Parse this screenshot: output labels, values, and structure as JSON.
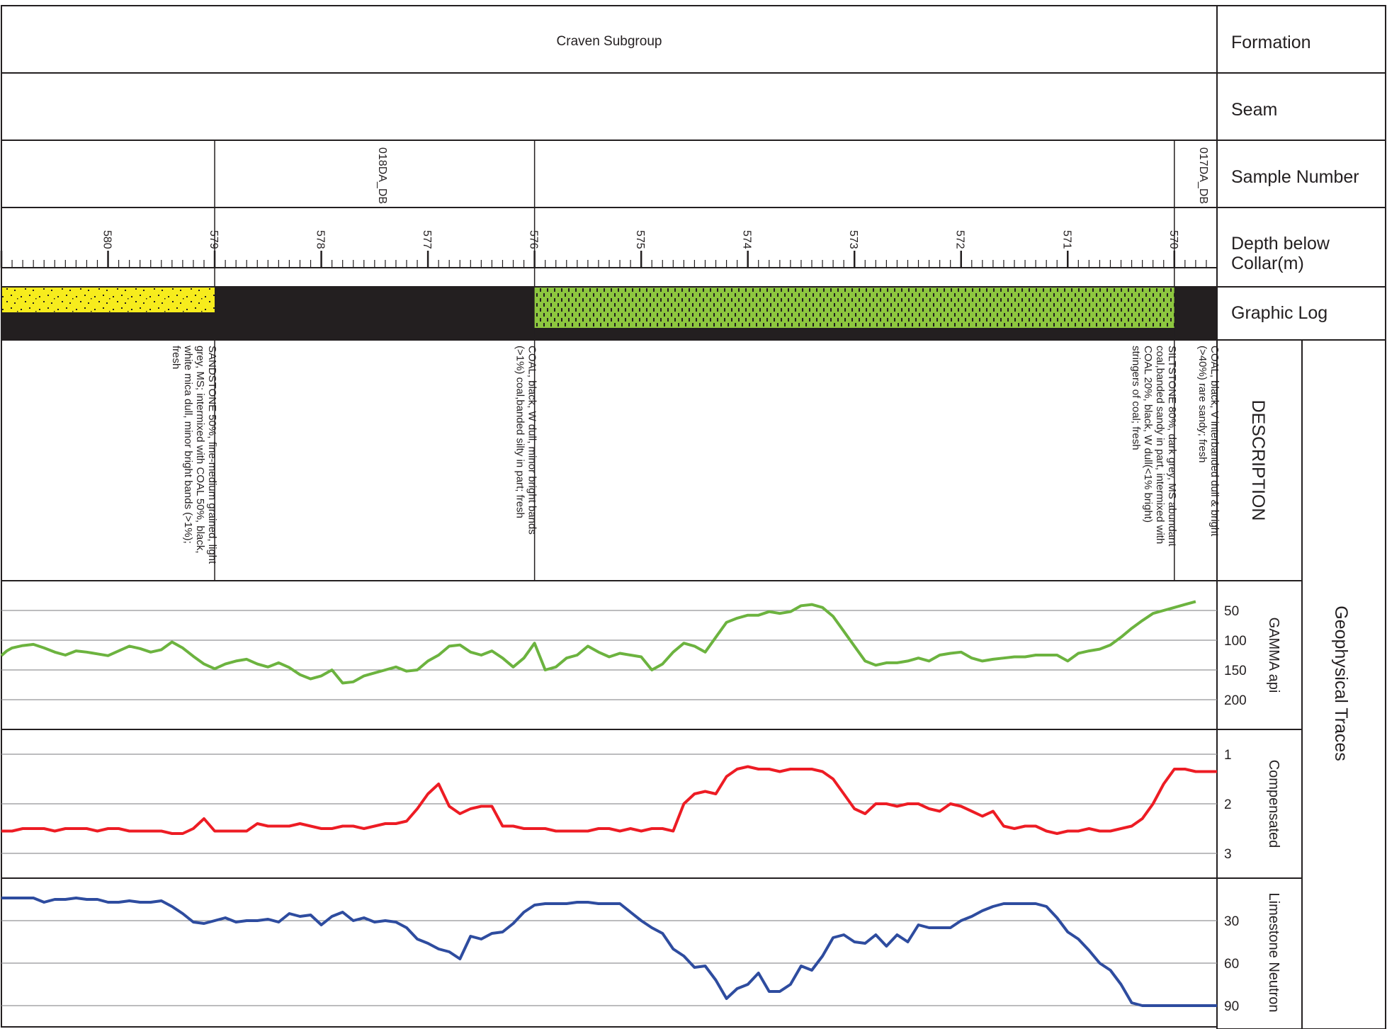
{
  "header": {
    "formation_value": "Craven Subgroup",
    "seam_value": ""
  },
  "row_labels": {
    "formation": "Formation",
    "seam": "Seam",
    "sample_number": "Sample Number",
    "depth_line1": "Depth below",
    "depth_line2": "Collar(m)",
    "graphic_log": "Graphic Log",
    "description": "DESCRIPTION",
    "geophysical": "Geophysical Traces"
  },
  "samples": [
    {
      "id": "018DA_DB",
      "from_depth": 579,
      "to_depth": 576
    },
    {
      "id": "017DA_DB",
      "from_depth": 570,
      "to_depth": 569.6
    }
  ],
  "depth_axis": {
    "left_depth": 581.0,
    "right_depth": 569.6,
    "major_ticks": [
      "580",
      "579",
      "578",
      "577",
      "576",
      "575",
      "574",
      "573",
      "572",
      "571",
      "570"
    ],
    "minor_step": 0.1
  },
  "lithology": [
    {
      "top_depth": 581.0,
      "base_depth": 579.0,
      "type": "sandstone+coal",
      "fill": "#f7ec1d",
      "description": "SANDSTONE 50%, fine-medium grained, light grey, MS; intermixed with COAL 50%, black, white mica dull, minor bright bands (>1%); fresh"
    },
    {
      "top_depth": 579.0,
      "base_depth": 576.0,
      "type": "coal",
      "fill": "#231f20",
      "description": "COAL, black, W dull, minor bright bands (>1%) coal,banded silty in part; fresh"
    },
    {
      "top_depth": 576.0,
      "base_depth": 570.0,
      "type": "siltstone+coal",
      "fill": "#8dc63f",
      "description": "SILTSTONE 80%, dark grey, MS abundant coal,banded sandy in part, intermixed with COAL 20%, black, W dull(<1% bright) stringers of coal; fresh"
    },
    {
      "top_depth": 570.0,
      "base_depth": 569.6,
      "type": "coal",
      "fill": "#231f20",
      "description": "COAL, black, V interbanded dull & bright (>40%) rare sandy; fresh"
    }
  ],
  "chart_data": {
    "type": "line",
    "x_label": "Depth below Collar(m)",
    "x_range": [
      581.0,
      569.6
    ],
    "tracks": [
      {
        "name": "GAMMA api",
        "color": "#6cb33f",
        "y_ticks": [
          "50",
          "100",
          "150",
          "200"
        ],
        "y_range": [
          0,
          250
        ],
        "depth": [
          581.0,
          580.95,
          580.9,
          580.8,
          580.7,
          580.6,
          580.5,
          580.4,
          580.3,
          580.2,
          580.1,
          580.0,
          579.9,
          579.8,
          579.7,
          579.6,
          579.5,
          579.4,
          579.3,
          579.2,
          579.1,
          579.0,
          578.9,
          578.8,
          578.7,
          578.6,
          578.5,
          578.4,
          578.3,
          578.2,
          578.1,
          578.0,
          577.9,
          577.8,
          577.7,
          577.6,
          577.5,
          577.4,
          577.3,
          577.2,
          577.1,
          577.0,
          576.9,
          576.8,
          576.7,
          576.6,
          576.5,
          576.4,
          576.3,
          576.2,
          576.1,
          576.0,
          575.9,
          575.8,
          575.7,
          575.6,
          575.5,
          575.4,
          575.3,
          575.2,
          575.1,
          575.0,
          574.9,
          574.8,
          574.7,
          574.6,
          574.5,
          574.4,
          574.3,
          574.2,
          574.1,
          574.0,
          573.9,
          573.8,
          573.7,
          573.6,
          573.5,
          573.4,
          573.3,
          573.2,
          573.1,
          573.0,
          572.9,
          572.8,
          572.7,
          572.6,
          572.5,
          572.4,
          572.3,
          572.2,
          572.1,
          572.0,
          571.9,
          571.8,
          571.7,
          571.6,
          571.5,
          571.4,
          571.3,
          571.2,
          571.1,
          571.0,
          570.9,
          570.8,
          570.7,
          570.6,
          570.5,
          570.4,
          570.3,
          570.2,
          570.1,
          570.0,
          569.9,
          569.8,
          569.7,
          569.6
        ],
        "values": [
          126,
          118,
          113,
          109,
          107,
          113,
          120,
          125,
          118,
          120,
          123,
          126,
          118,
          110,
          114,
          120,
          116,
          103,
          113,
          127,
          140,
          148,
          140,
          135,
          132,
          140,
          145,
          138,
          146,
          158,
          165,
          160,
          150,
          172,
          170,
          160,
          155,
          150,
          145,
          152,
          150,
          135,
          125,
          110,
          108,
          120,
          125,
          118,
          130,
          145,
          130,
          105,
          150,
          145,
          130,
          125,
          110,
          120,
          128,
          122,
          125,
          128,
          150,
          140,
          120,
          105,
          110,
          120,
          95,
          70,
          63,
          58,
          58,
          52,
          55,
          52,
          42,
          40,
          45,
          60,
          85,
          110,
          135,
          142,
          138,
          138,
          135,
          130,
          135,
          125,
          122,
          120,
          130,
          135,
          132,
          130,
          128,
          128,
          125,
          125,
          125,
          135,
          122,
          118,
          115,
          108,
          95,
          80,
          67,
          55,
          50,
          45,
          40,
          35
        ]
      },
      {
        "name": "Compensated",
        "color": "#ed1c24",
        "y_ticks": [
          "1",
          "2",
          "3"
        ],
        "y_range": [
          0.5,
          3.5
        ],
        "depth": [
          581.0,
          580.9,
          580.8,
          580.7,
          580.6,
          580.5,
          580.4,
          580.3,
          580.2,
          580.1,
          580.0,
          579.9,
          579.8,
          579.7,
          579.6,
          579.5,
          579.4,
          579.3,
          579.2,
          579.1,
          579.0,
          578.9,
          578.8,
          578.7,
          578.6,
          578.5,
          578.4,
          578.3,
          578.2,
          578.1,
          578.0,
          577.9,
          577.8,
          577.7,
          577.6,
          577.5,
          577.4,
          577.3,
          577.2,
          577.1,
          577.0,
          576.9,
          576.8,
          576.7,
          576.6,
          576.5,
          576.4,
          576.3,
          576.2,
          576.1,
          576.0,
          575.9,
          575.8,
          575.7,
          575.6,
          575.5,
          575.4,
          575.3,
          575.2,
          575.1,
          575.0,
          574.9,
          574.8,
          574.7,
          574.6,
          574.5,
          574.4,
          574.3,
          574.2,
          574.1,
          574.0,
          573.9,
          573.8,
          573.7,
          573.6,
          573.5,
          573.4,
          573.3,
          573.2,
          573.1,
          573.0,
          572.9,
          572.8,
          572.7,
          572.6,
          572.5,
          572.4,
          572.3,
          572.2,
          572.1,
          572.0,
          571.9,
          571.8,
          571.7,
          571.6,
          571.5,
          571.4,
          571.3,
          571.2,
          571.1,
          571.0,
          570.9,
          570.8,
          570.7,
          570.6,
          570.5,
          570.4,
          570.3,
          570.2,
          570.1,
          570.0,
          569.9,
          569.8,
          569.7,
          569.6
        ],
        "values": [
          2.55,
          2.55,
          2.5,
          2.5,
          2.5,
          2.55,
          2.5,
          2.5,
          2.5,
          2.55,
          2.5,
          2.5,
          2.55,
          2.55,
          2.55,
          2.55,
          2.6,
          2.6,
          2.5,
          2.3,
          2.55,
          2.55,
          2.55,
          2.55,
          2.4,
          2.45,
          2.45,
          2.45,
          2.4,
          2.45,
          2.5,
          2.5,
          2.45,
          2.45,
          2.5,
          2.45,
          2.4,
          2.4,
          2.35,
          2.1,
          1.8,
          1.6,
          2.05,
          2.2,
          2.1,
          2.05,
          2.05,
          2.45,
          2.45,
          2.5,
          2.5,
          2.5,
          2.55,
          2.55,
          2.55,
          2.55,
          2.5,
          2.5,
          2.55,
          2.5,
          2.55,
          2.5,
          2.5,
          2.55,
          2.0,
          1.8,
          1.75,
          1.8,
          1.45,
          1.3,
          1.25,
          1.3,
          1.3,
          1.35,
          1.3,
          1.3,
          1.3,
          1.35,
          1.5,
          1.8,
          2.1,
          2.2,
          2.0,
          2.0,
          2.05,
          2.0,
          2.0,
          2.1,
          2.15,
          2.0,
          2.05,
          2.15,
          2.25,
          2.15,
          2.45,
          2.5,
          2.45,
          2.45,
          2.55,
          2.6,
          2.55,
          2.55,
          2.5,
          2.55,
          2.55,
          2.5,
          2.45,
          2.3,
          2.0,
          1.6,
          1.3,
          1.3,
          1.35,
          1.35,
          1.35
        ]
      },
      {
        "name": "Limestone Neutron",
        "color": "#2e4c9f",
        "y_ticks": [
          "30",
          "60",
          "90"
        ],
        "y_range": [
          0,
          105
        ],
        "depth": [
          581.0,
          580.9,
          580.8,
          580.7,
          580.6,
          580.5,
          580.4,
          580.3,
          580.2,
          580.1,
          580.0,
          579.9,
          579.8,
          579.7,
          579.6,
          579.5,
          579.4,
          579.3,
          579.2,
          579.1,
          579.0,
          578.9,
          578.8,
          578.7,
          578.6,
          578.5,
          578.4,
          578.3,
          578.2,
          578.1,
          578.0,
          577.9,
          577.8,
          577.7,
          577.6,
          577.5,
          577.4,
          577.3,
          577.2,
          577.1,
          577.0,
          576.9,
          576.8,
          576.7,
          576.6,
          576.5,
          576.4,
          576.3,
          576.2,
          576.1,
          576.0,
          575.9,
          575.8,
          575.7,
          575.6,
          575.5,
          575.4,
          575.3,
          575.2,
          575.1,
          575.0,
          574.9,
          574.8,
          574.7,
          574.6,
          574.5,
          574.4,
          574.3,
          574.2,
          574.1,
          574.0,
          573.9,
          573.8,
          573.7,
          573.6,
          573.5,
          573.4,
          573.3,
          573.2,
          573.1,
          573.0,
          572.9,
          572.8,
          572.7,
          572.6,
          572.5,
          572.4,
          572.3,
          572.2,
          572.1,
          572.0,
          571.9,
          571.8,
          571.7,
          571.6,
          571.5,
          571.4,
          571.3,
          571.2,
          571.1,
          571.0,
          570.9,
          570.8,
          570.7,
          570.6,
          570.5,
          570.4,
          570.3,
          570.2,
          570.1,
          570.0,
          569.9,
          569.8,
          569.7,
          569.6
        ],
        "values": [
          14,
          14,
          14,
          14,
          17,
          15,
          15,
          14,
          15,
          15,
          17,
          17,
          16,
          17,
          17,
          16,
          20,
          25,
          31,
          32,
          30,
          28,
          31,
          30,
          30,
          29,
          31,
          25,
          27,
          26,
          33,
          27,
          24,
          30,
          28,
          31,
          30,
          31,
          35,
          43,
          46,
          50,
          52,
          57,
          41,
          43,
          39,
          38,
          32,
          24,
          19,
          18,
          18,
          18,
          17,
          17,
          18,
          18,
          18,
          24,
          30,
          35,
          39,
          50,
          55,
          63,
          62,
          72,
          85,
          78,
          75,
          67,
          80,
          80,
          75,
          62,
          65,
          55,
          42,
          40,
          45,
          46,
          40,
          48,
          40,
          45,
          33,
          35,
          35,
          35,
          30,
          27,
          23,
          20,
          18,
          18,
          18,
          18,
          20,
          28,
          38,
          43,
          51,
          60,
          65,
          75,
          88,
          90,
          90,
          90,
          90,
          90,
          90,
          90,
          90
        ]
      }
    ]
  }
}
